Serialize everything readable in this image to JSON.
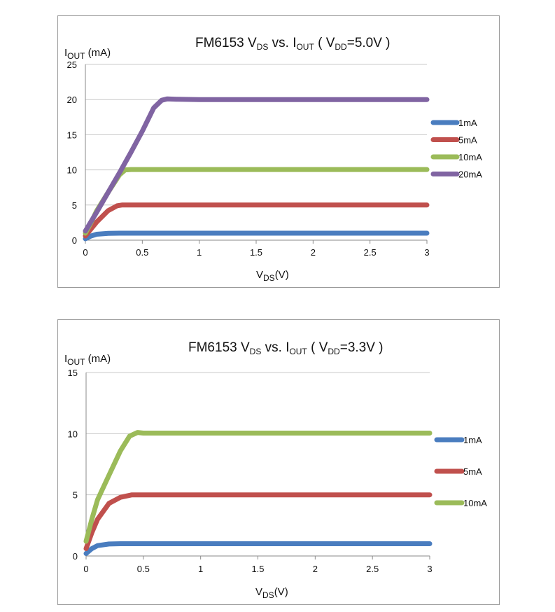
{
  "chart_data": [
    {
      "type": "line",
      "title": {
        "prefix": "FM6153",
        "v": "V",
        "v_sub": "DS",
        "vs": " vs. ",
        "i": "I",
        "i_sub": "OUT",
        "paren": "( V",
        "vdd_sub": "DD",
        "tail": "=5.0V )"
      },
      "ylabel": {
        "main": "I",
        "sub": "OUT",
        "unit": " (mA)"
      },
      "xlabel": {
        "main": "V",
        "sub": "DS",
        "unit": "(V)"
      },
      "xlim": [
        0,
        3
      ],
      "ylim": [
        0,
        25
      ],
      "x_ticks": [
        "0",
        "0.5",
        "1",
        "1.5",
        "2",
        "2.5",
        "3"
      ],
      "y_ticks": [
        "0",
        "5",
        "10",
        "15",
        "20",
        "25"
      ],
      "grid": "horizontal",
      "legend_position": "right",
      "series": [
        {
          "name": "1mA",
          "color": "#4a7dbf",
          "x": [
            0,
            0.05,
            0.1,
            0.2,
            0.3,
            0.5,
            1,
            2,
            3
          ],
          "y": [
            0.2,
            0.6,
            0.85,
            0.98,
            1.0,
            1.0,
            1.0,
            1.0,
            1.0
          ]
        },
        {
          "name": "5mA",
          "color": "#c0504d",
          "x": [
            0,
            0.05,
            0.1,
            0.2,
            0.28,
            0.32,
            0.4,
            1,
            2,
            3
          ],
          "y": [
            0.6,
            1.6,
            2.6,
            4.2,
            4.9,
            5.0,
            5.0,
            5.0,
            5.0,
            5.0
          ]
        },
        {
          "name": "10mA",
          "color": "#9bbb59",
          "x": [
            0,
            0.05,
            0.1,
            0.2,
            0.3,
            0.35,
            0.4,
            1,
            2,
            3
          ],
          "y": [
            1.0,
            2.5,
            4.2,
            6.8,
            9.3,
            10.0,
            10.05,
            10.05,
            10.05,
            10.05
          ]
        },
        {
          "name": "20mA",
          "color": "#8064a2",
          "x": [
            0,
            0.1,
            0.2,
            0.3,
            0.4,
            0.5,
            0.6,
            0.67,
            0.72,
            0.8,
            1,
            2,
            3
          ],
          "y": [
            1.3,
            4.0,
            6.8,
            9.6,
            12.5,
            15.5,
            18.8,
            19.9,
            20.1,
            20.05,
            20.0,
            20.0,
            20.0
          ]
        }
      ]
    },
    {
      "type": "line",
      "title": {
        "prefix": "FM6153",
        "v": "V",
        "v_sub": "DS",
        "vs": " vs. ",
        "i": "I",
        "i_sub": "OUT",
        "paren": "( V",
        "vdd_sub": "DD",
        "tail": "=3.3V )"
      },
      "ylabel": {
        "main": "I",
        "sub": "OUT",
        "unit": " (mA)"
      },
      "xlabel": {
        "main": "V",
        "sub": "DS",
        "unit": "(V)"
      },
      "xlim": [
        0,
        3
      ],
      "ylim": [
        0,
        15
      ],
      "x_ticks": [
        "0",
        "0.5",
        "1",
        "1.5",
        "2",
        "2.5",
        "3"
      ],
      "y_ticks": [
        "0",
        "5",
        "10",
        "15"
      ],
      "grid": "horizontal",
      "legend_position": "right",
      "series": [
        {
          "name": "1mA",
          "color": "#4a7dbf",
          "x": [
            0,
            0.05,
            0.1,
            0.2,
            0.3,
            0.5,
            1,
            2,
            3
          ],
          "y": [
            0.2,
            0.6,
            0.85,
            0.98,
            1.0,
            1.0,
            1.0,
            1.0,
            1.0
          ]
        },
        {
          "name": "5mA",
          "color": "#c0504d",
          "x": [
            0,
            0.05,
            0.1,
            0.2,
            0.3,
            0.4,
            0.5,
            1,
            2,
            3
          ],
          "y": [
            0.6,
            1.9,
            3.0,
            4.3,
            4.8,
            5.0,
            5.0,
            5.0,
            5.0,
            5.0
          ]
        },
        {
          "name": "10mA",
          "color": "#9bbb59",
          "x": [
            0,
            0.05,
            0.1,
            0.2,
            0.3,
            0.38,
            0.45,
            0.5,
            1,
            2,
            3
          ],
          "y": [
            1.2,
            3.0,
            4.6,
            6.6,
            8.6,
            9.8,
            10.1,
            10.05,
            10.05,
            10.05,
            10.05
          ]
        }
      ]
    }
  ]
}
